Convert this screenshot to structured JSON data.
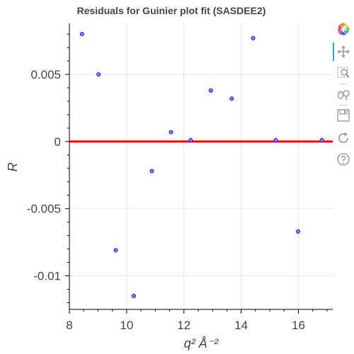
{
  "chart_data": {
    "type": "scatter",
    "title": "Residuals for Guinier plot fit (SASDEE2)",
    "xlabel": "q² Å⁻²",
    "ylabel": "R",
    "xlim": [
      8,
      17.2
    ],
    "ylim": [
      -0.0125,
      0.0088
    ],
    "xticks": [
      8,
      10,
      12,
      14,
      16
    ],
    "xtick_labels": [
      "8",
      "10",
      "12",
      "14",
      "16"
    ],
    "yticks": [
      0.005,
      0,
      -0.005,
      -0.01
    ],
    "ytick_labels": [
      "0.005",
      "0",
      "-0.005",
      "-0.01"
    ],
    "grid": true,
    "series": [
      {
        "type": "scatter",
        "color": "#0000ff",
        "points": [
          {
            "x": 8.44,
            "y": 0.008
          },
          {
            "x": 9.02,
            "y": 0.005
          },
          {
            "x": 9.62,
            "y": -0.0081
          },
          {
            "x": 10.25,
            "y": -0.0115
          },
          {
            "x": 10.88,
            "y": -0.0022
          },
          {
            "x": 11.55,
            "y": 0.0007
          },
          {
            "x": 12.24,
            "y": 0.0001
          },
          {
            "x": 12.94,
            "y": 0.0038
          },
          {
            "x": 13.67,
            "y": 0.0032
          },
          {
            "x": 14.42,
            "y": 0.0077
          },
          {
            "x": 15.21,
            "y": 0.0001
          },
          {
            "x": 15.99,
            "y": -0.0067
          },
          {
            "x": 16.82,
            "y": 0.0001
          }
        ]
      },
      {
        "type": "hline",
        "y": 0,
        "color": "#ff0000"
      }
    ]
  },
  "toolbar": {
    "tools": [
      "bokeh-logo-icon",
      "pan-icon",
      "box-zoom-icon",
      "wheel-zoom-icon",
      "save-icon",
      "reset-icon",
      "help-icon"
    ]
  }
}
